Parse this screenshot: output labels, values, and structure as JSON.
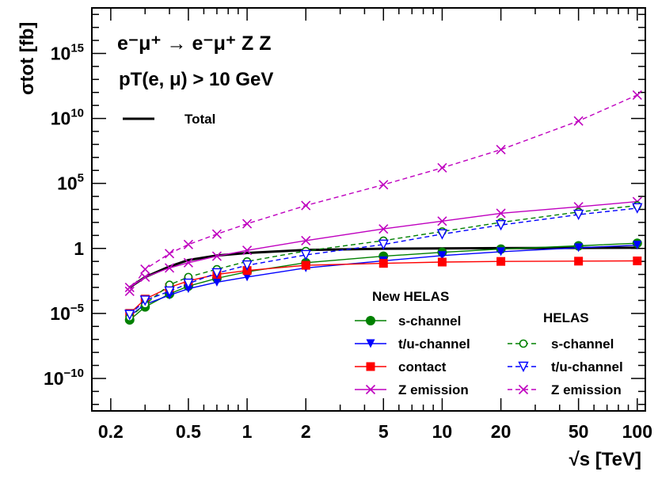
{
  "chart_data": {
    "type": "line",
    "x_scale": "log",
    "y_scale": "log",
    "xlim": [
      0.16,
      110
    ],
    "ylim_exponent": [
      -12.5,
      18.5
    ],
    "x_ticks": [
      {
        "value": 0.2,
        "label": "0.2"
      },
      {
        "value": 0.5,
        "label": "0.5"
      },
      {
        "value": 1,
        "label": "1"
      },
      {
        "value": 2,
        "label": "2"
      },
      {
        "value": 5,
        "label": "5"
      },
      {
        "value": 10,
        "label": "10"
      },
      {
        "value": 20,
        "label": "20"
      },
      {
        "value": 50,
        "label": "50"
      },
      {
        "value": 100,
        "label": "100"
      }
    ],
    "y_ticks": [
      {
        "exp": -10,
        "mantissa": "10",
        "sup": "−10"
      },
      {
        "exp": -5,
        "mantissa": "10",
        "sup": "−5"
      },
      {
        "exp": 0,
        "mantissa": "1",
        "sup": ""
      },
      {
        "exp": 5,
        "mantissa": "10",
        "sup": "5"
      },
      {
        "exp": 10,
        "mantissa": "10",
        "sup": "10"
      },
      {
        "exp": 15,
        "mantissa": "10",
        "sup": "15"
      }
    ],
    "xlabel": "√s [TeV]",
    "ylabel": "σtot [fb]",
    "annotations": {
      "process": "e⁻μ⁺ → e⁻μ⁺ Z Z",
      "cut": "pT(e, μ) > 10 GeV"
    },
    "legend_titles": {
      "new": "New HELAS",
      "old": "HELAS"
    },
    "x": [
      0.25,
      0.3,
      0.4,
      0.5,
      0.7,
      1,
      2,
      5,
      10,
      20,
      50,
      100
    ],
    "series": [
      {
        "name": "Total",
        "group": "total",
        "color": "#000000",
        "dashed": false,
        "marker": "none",
        "values_exp": [
          -3.0,
          -2.2,
          -1.4,
          -0.9,
          -0.55,
          -0.35,
          -0.12,
          -0.02,
          0.0,
          0.02,
          0.04,
          0.05
        ]
      },
      {
        "name": "s-channel",
        "group": "new",
        "color": "#008000",
        "dashed": false,
        "marker": "circle-filled",
        "values_exp": [
          -5.5,
          -4.5,
          -3.5,
          -2.9,
          -2.3,
          -1.8,
          -1.1,
          -0.6,
          -0.3,
          -0.05,
          0.2,
          0.4
        ]
      },
      {
        "name": "t/u-channel",
        "group": "new",
        "color": "#0000ff",
        "dashed": false,
        "marker": "triangle-down-filled",
        "values_exp": [
          -5.2,
          -4.3,
          -3.6,
          -3.1,
          -2.6,
          -2.2,
          -1.5,
          -0.95,
          -0.55,
          -0.25,
          0.05,
          0.25
        ]
      },
      {
        "name": "contact",
        "group": "new",
        "color": "#ff0000",
        "dashed": false,
        "marker": "square-filled",
        "values_exp": [
          -5.0,
          -3.9,
          -3.0,
          -2.5,
          -2.0,
          -1.7,
          -1.3,
          -1.15,
          -1.05,
          -1.0,
          -0.98,
          -0.96
        ]
      },
      {
        "name": "Z emission",
        "group": "new",
        "color": "#bf00bf",
        "dashed": false,
        "marker": "x",
        "values_exp": [
          -3.0,
          -2.2,
          -1.5,
          -1.1,
          -0.6,
          -0.15,
          0.6,
          1.5,
          2.1,
          2.7,
          3.2,
          3.6
        ]
      },
      {
        "name": "s-channel",
        "group": "old",
        "color": "#008000",
        "dashed": true,
        "marker": "circle-open",
        "values_exp": [
          -5.3,
          -4.3,
          -2.8,
          -2.2,
          -1.6,
          -1.0,
          -0.2,
          0.6,
          1.3,
          2.0,
          2.8,
          3.3
        ]
      },
      {
        "name": "t/u-channel",
        "group": "old",
        "color": "#0000ff",
        "dashed": true,
        "marker": "triangle-down-open",
        "values_exp": [
          -5.1,
          -4.0,
          -3.3,
          -2.7,
          -1.9,
          -1.3,
          -0.5,
          0.3,
          1.1,
          1.8,
          2.6,
          3.1
        ]
      },
      {
        "name": "Z emission",
        "group": "old",
        "color": "#bf00bf",
        "dashed": true,
        "marker": "x",
        "values_exp": [
          -3.3,
          -1.6,
          -0.4,
          0.3,
          1.1,
          1.9,
          3.3,
          4.9,
          6.2,
          7.6,
          9.8,
          11.8
        ]
      }
    ]
  }
}
